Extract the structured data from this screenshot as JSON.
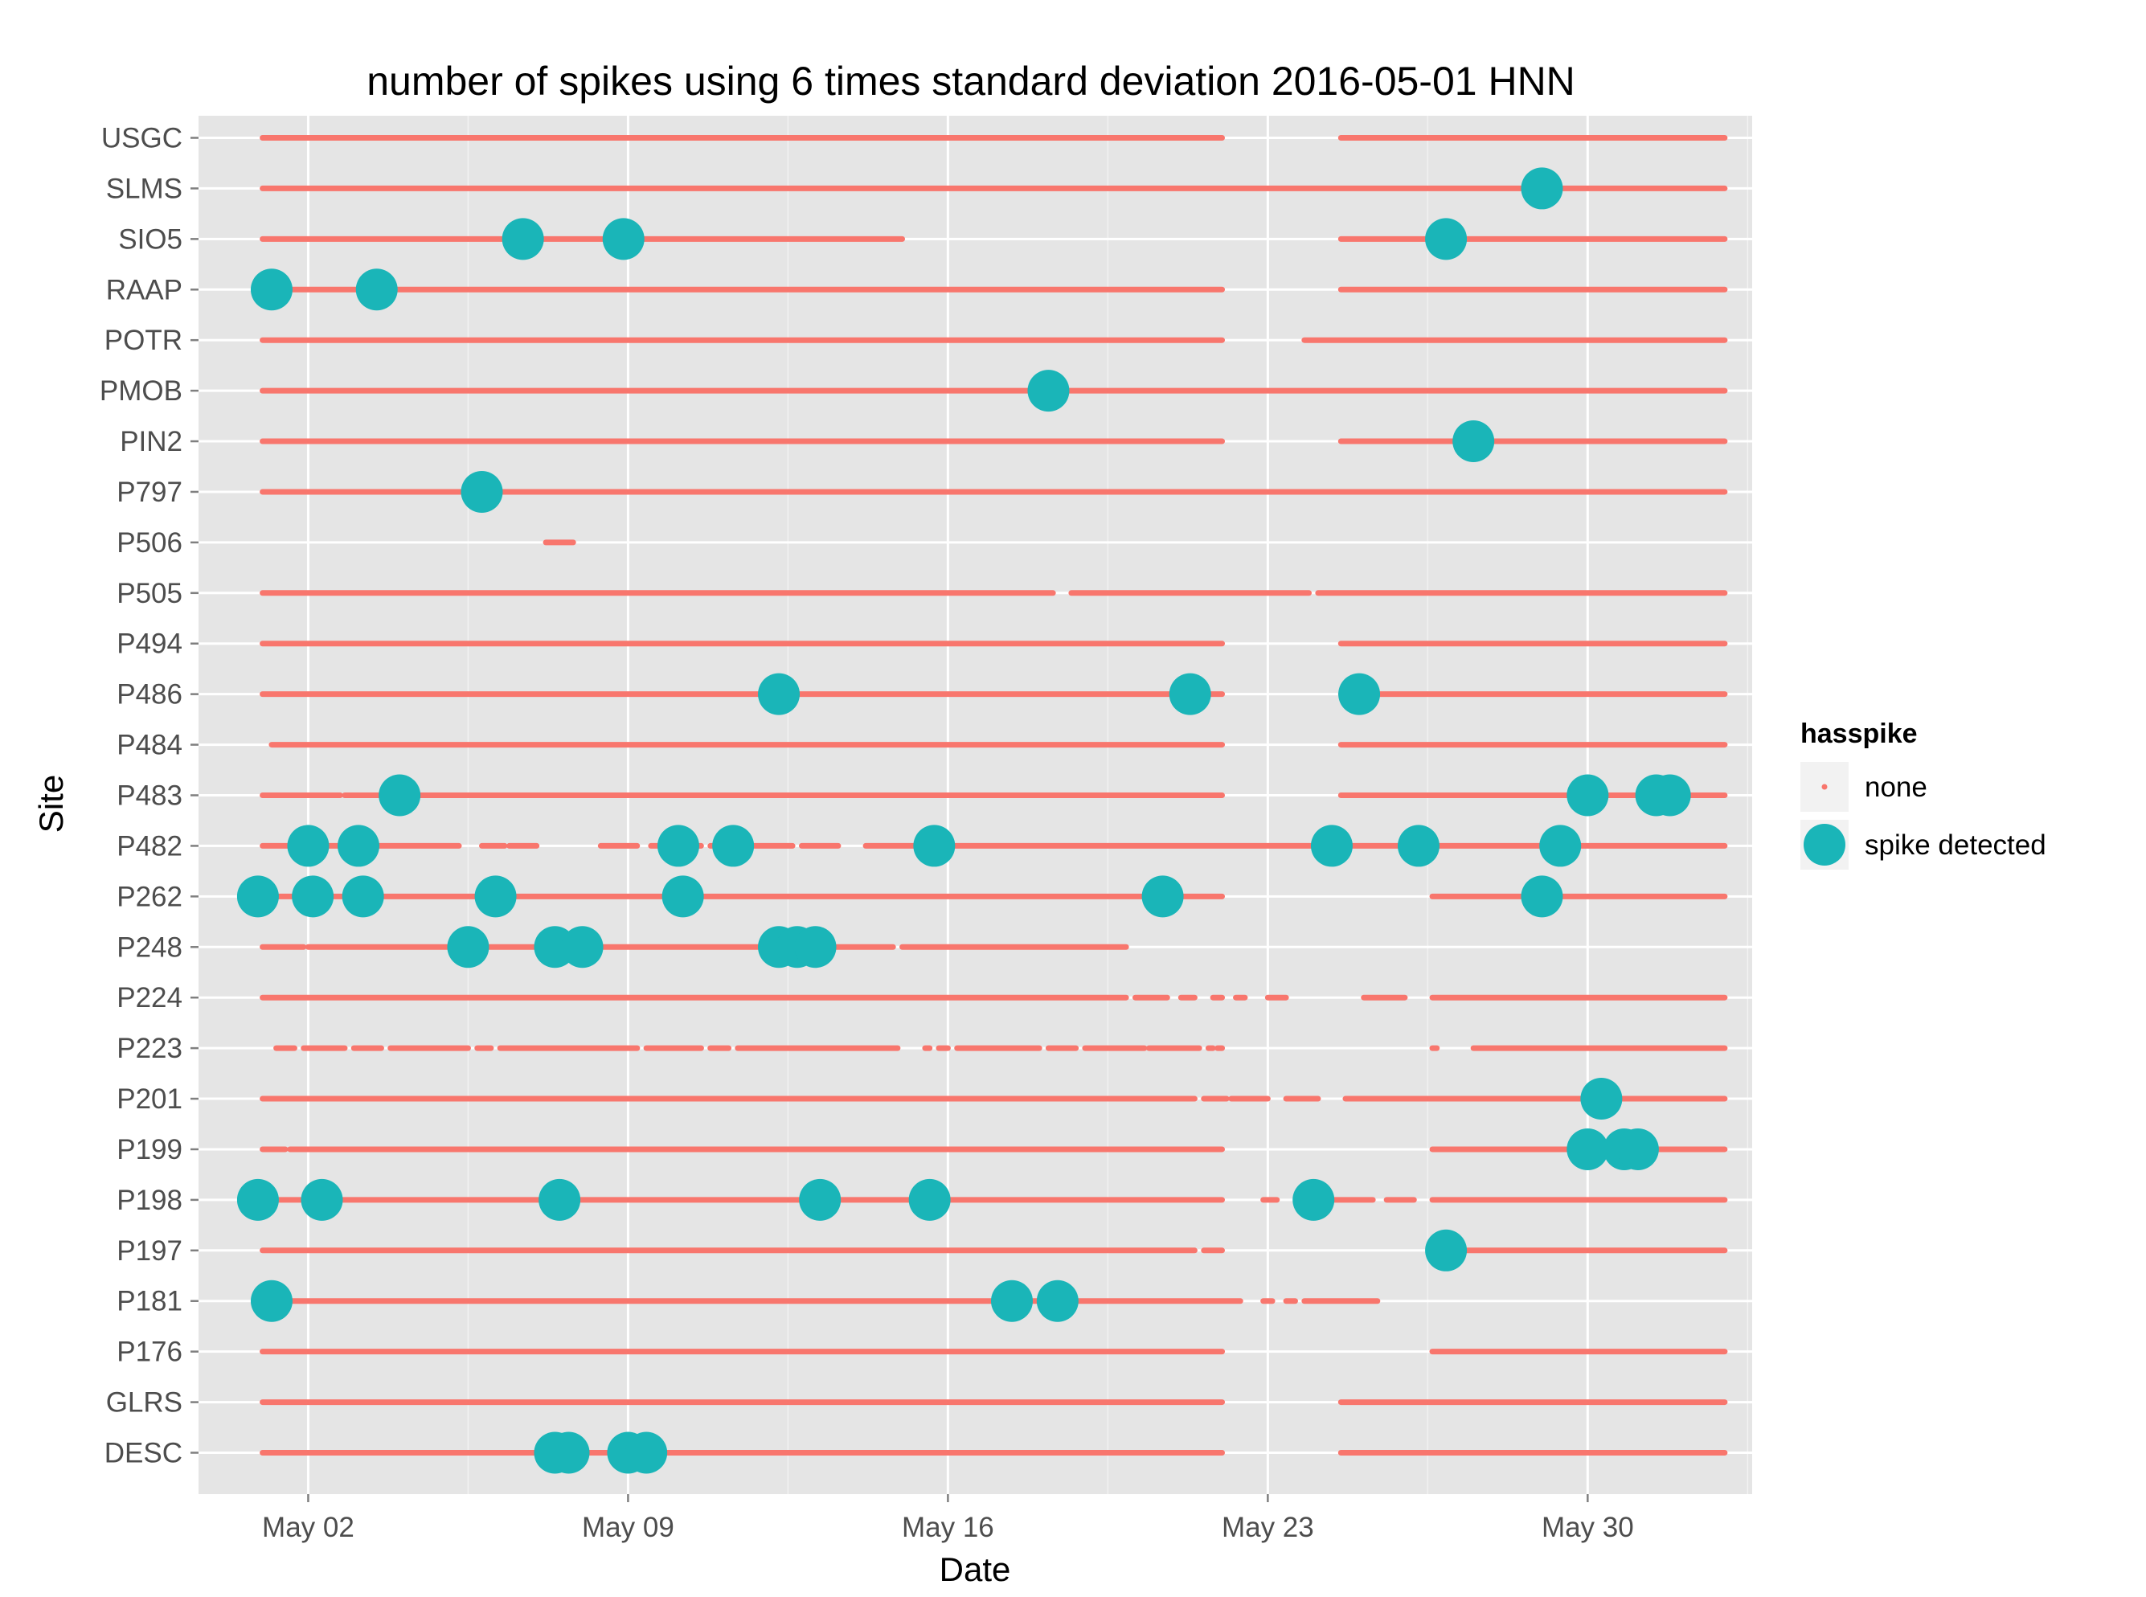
{
  "chart_data": {
    "type": "scatter",
    "title": "number of spikes using  6 times standard deviation 2016-05-01 HNN",
    "xlabel": "Date",
    "ylabel": "Site",
    "grid": true,
    "x_unit": "days since 2016-05-01",
    "xlim": [
      -1.4,
      32.6
    ],
    "x_ticks": [
      {
        "value": 1,
        "label": "May 02"
      },
      {
        "value": 8,
        "label": "May 09"
      },
      {
        "value": 15,
        "label": "May 16"
      },
      {
        "value": 22,
        "label": "May 23"
      },
      {
        "value": 29,
        "label": "May 30"
      }
    ],
    "categories": [
      "USGC",
      "SLMS",
      "SIO5",
      "RAAP",
      "POTR",
      "PMOB",
      "PIN2",
      "P797",
      "P506",
      "P505",
      "P494",
      "P486",
      "P484",
      "P483",
      "P482",
      "P262",
      "P248",
      "P224",
      "P223",
      "P201",
      "P199",
      "P198",
      "P197",
      "P181",
      "P176",
      "GLRS",
      "DESC"
    ],
    "series": [
      {
        "name": "none",
        "color": "#F8766D",
        "kind": "segments"
      },
      {
        "name": "spike detected",
        "color": "#1AB5B8",
        "kind": "points"
      }
    ],
    "legend": {
      "title": "hasspike",
      "position": "right",
      "labels": [
        "none",
        "spike detected"
      ]
    },
    "none_segments": {
      "USGC": [
        [
          0.0,
          21.0
        ],
        [
          23.6,
          32.0
        ]
      ],
      "SLMS": [
        [
          0.0,
          32.0
        ]
      ],
      "SIO5": [
        [
          0.0,
          14.0
        ],
        [
          23.6,
          32.0
        ]
      ],
      "RAAP": [
        [
          0.0,
          21.0
        ],
        [
          23.6,
          32.0
        ]
      ],
      "POTR": [
        [
          0.0,
          21.0
        ],
        [
          22.8,
          32.0
        ]
      ],
      "PMOB": [
        [
          0.0,
          32.0
        ]
      ],
      "PIN2": [
        [
          0.0,
          21.0
        ],
        [
          23.6,
          32.0
        ]
      ],
      "P797": [
        [
          0.0,
          32.0
        ]
      ],
      "P506": [
        [
          6.2,
          6.8
        ]
      ],
      "P505": [
        [
          0.0,
          17.3
        ],
        [
          17.7,
          22.9
        ],
        [
          23.1,
          32.0
        ]
      ],
      "P494": [
        [
          0.0,
          21.0
        ],
        [
          23.6,
          32.0
        ]
      ],
      "P486": [
        [
          0.0,
          21.0
        ],
        [
          23.6,
          32.0
        ]
      ],
      "P484": [
        [
          0.2,
          21.0
        ],
        [
          23.6,
          32.0
        ]
      ],
      "P483": [
        [
          0.0,
          1.7
        ],
        [
          1.8,
          21.0
        ],
        [
          23.6,
          32.0
        ]
      ],
      "P482": [
        [
          0.0,
          0.7
        ],
        [
          0.9,
          4.3
        ],
        [
          4.8,
          5.3
        ],
        [
          5.4,
          6.0
        ],
        [
          7.4,
          8.2
        ],
        [
          8.5,
          9.6
        ],
        [
          9.8,
          11.6
        ],
        [
          11.8,
          12.6
        ],
        [
          13.2,
          32.0
        ]
      ],
      "P262": [
        [
          0.0,
          21.0
        ],
        [
          25.6,
          32.0
        ]
      ],
      "P248": [
        [
          0.0,
          0.9
        ],
        [
          1.0,
          13.8
        ],
        [
          14.0,
          18.9
        ]
      ],
      "P224": [
        [
          0.0,
          18.9
        ],
        [
          19.1,
          19.8
        ],
        [
          20.1,
          20.4
        ],
        [
          20.8,
          21.0
        ],
        [
          21.3,
          21.5
        ],
        [
          22.0,
          22.4
        ],
        [
          24.1,
          25.0
        ],
        [
          25.6,
          32.0
        ]
      ],
      "P223": [
        [
          0.3,
          0.7
        ],
        [
          0.9,
          1.8
        ],
        [
          2.0,
          2.6
        ],
        [
          2.8,
          4.5
        ],
        [
          4.7,
          5.0
        ],
        [
          5.2,
          8.2
        ],
        [
          8.4,
          9.6
        ],
        [
          9.8,
          10.2
        ],
        [
          10.4,
          13.9
        ],
        [
          14.5,
          14.6
        ],
        [
          14.8,
          15.0
        ],
        [
          15.2,
          17.0
        ],
        [
          17.2,
          17.8
        ],
        [
          18.0,
          19.3
        ],
        [
          19.4,
          20.5
        ],
        [
          20.7,
          20.8
        ],
        [
          20.9,
          21.0
        ],
        [
          25.6,
          25.7
        ],
        [
          26.5,
          32.0
        ]
      ],
      "P201": [
        [
          0.0,
          20.4
        ],
        [
          20.6,
          21.1
        ],
        [
          21.2,
          22.0
        ],
        [
          22.4,
          23.1
        ],
        [
          23.7,
          32.0
        ]
      ],
      "P199": [
        [
          0.0,
          0.5
        ],
        [
          0.6,
          21.0
        ],
        [
          25.6,
          32.0
        ]
      ],
      "P198": [
        [
          0.0,
          21.0
        ],
        [
          21.9,
          22.2
        ],
        [
          22.8,
          24.3
        ],
        [
          24.6,
          25.2
        ],
        [
          25.6,
          32.0
        ]
      ],
      "P197": [
        [
          0.0,
          20.4
        ],
        [
          20.6,
          21.0
        ],
        [
          25.6,
          32.0
        ]
      ],
      "P181": [
        [
          0.0,
          21.4
        ],
        [
          21.9,
          22.1
        ],
        [
          22.4,
          22.6
        ],
        [
          22.8,
          24.4
        ]
      ],
      "P176": [
        [
          0.0,
          21.0
        ],
        [
          25.6,
          32.0
        ]
      ],
      "GLRS": [
        [
          0.0,
          21.0
        ],
        [
          23.6,
          32.0
        ]
      ],
      "DESC": [
        [
          0.0,
          21.0
        ],
        [
          23.6,
          32.0
        ]
      ]
    },
    "spike_points": [
      {
        "site": "SLMS",
        "x": 28.0
      },
      {
        "site": "SIO5",
        "x": 5.7
      },
      {
        "site": "SIO5",
        "x": 7.9
      },
      {
        "site": "SIO5",
        "x": 25.9
      },
      {
        "site": "RAAP",
        "x": 0.2
      },
      {
        "site": "RAAP",
        "x": 2.5
      },
      {
        "site": "PMOB",
        "x": 17.2
      },
      {
        "site": "PIN2",
        "x": 26.5
      },
      {
        "site": "P797",
        "x": 4.8
      },
      {
        "site": "P486",
        "x": 11.3
      },
      {
        "site": "P486",
        "x": 20.3
      },
      {
        "site": "P486",
        "x": 24.0
      },
      {
        "site": "P483",
        "x": 3.0
      },
      {
        "site": "P483",
        "x": 29.0
      },
      {
        "site": "P483",
        "x": 30.5
      },
      {
        "site": "P483",
        "x": 30.8
      },
      {
        "site": "P482",
        "x": 1.0
      },
      {
        "site": "P482",
        "x": 2.1
      },
      {
        "site": "P482",
        "x": 9.1
      },
      {
        "site": "P482",
        "x": 10.3
      },
      {
        "site": "P482",
        "x": 14.7
      },
      {
        "site": "P482",
        "x": 23.4
      },
      {
        "site": "P482",
        "x": 25.3
      },
      {
        "site": "P482",
        "x": 28.4
      },
      {
        "site": "P262",
        "x": -0.1
      },
      {
        "site": "P262",
        "x": 1.1
      },
      {
        "site": "P262",
        "x": 2.2
      },
      {
        "site": "P262",
        "x": 5.1
      },
      {
        "site": "P262",
        "x": 9.2
      },
      {
        "site": "P262",
        "x": 19.7
      },
      {
        "site": "P262",
        "x": 28.0
      },
      {
        "site": "P248",
        "x": 4.5
      },
      {
        "site": "P248",
        "x": 6.4
      },
      {
        "site": "P248",
        "x": 7.0
      },
      {
        "site": "P248",
        "x": 11.3
      },
      {
        "site": "P248",
        "x": 11.7
      },
      {
        "site": "P248",
        "x": 12.1
      },
      {
        "site": "P201",
        "x": 29.3
      },
      {
        "site": "P199",
        "x": 29.0
      },
      {
        "site": "P199",
        "x": 29.8
      },
      {
        "site": "P199",
        "x": 30.1
      },
      {
        "site": "P198",
        "x": -0.1
      },
      {
        "site": "P198",
        "x": 1.3
      },
      {
        "site": "P198",
        "x": 6.5
      },
      {
        "site": "P198",
        "x": 12.2
      },
      {
        "site": "P198",
        "x": 14.6
      },
      {
        "site": "P198",
        "x": 23.0
      },
      {
        "site": "P197",
        "x": 25.9
      },
      {
        "site": "P181",
        "x": 0.2
      },
      {
        "site": "P181",
        "x": 16.4
      },
      {
        "site": "P181",
        "x": 17.4
      },
      {
        "site": "DESC",
        "x": 6.4
      },
      {
        "site": "DESC",
        "x": 6.7
      },
      {
        "site": "DESC",
        "x": 8.0
      },
      {
        "site": "DESC",
        "x": 8.4
      }
    ]
  }
}
